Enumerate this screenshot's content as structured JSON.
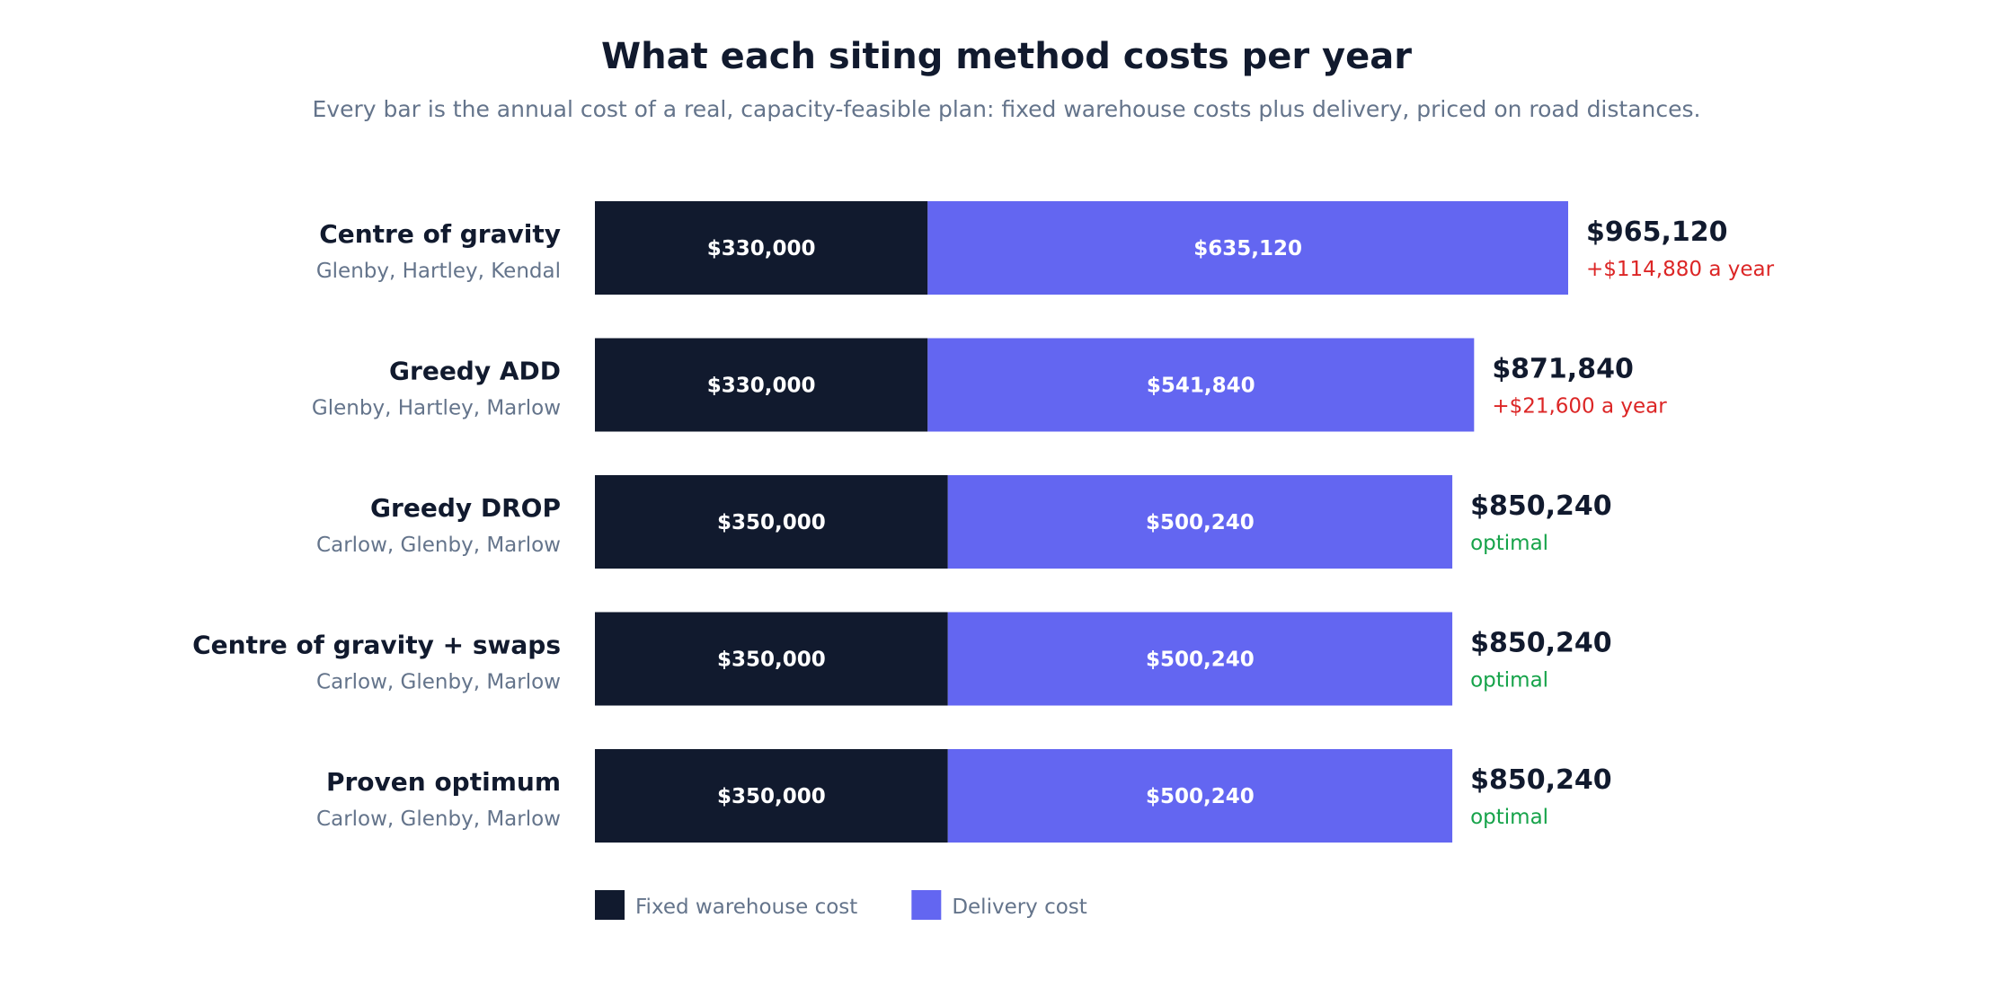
{
  "title": "What each siting method costs per year",
  "subtitle": "Every bar is the annual cost of a real, capacity-feasible plan: fixed warehouse costs plus delivery, priced on road distances.",
  "colors": {
    "fixed": "#111a2e",
    "delivery": "#6366f1",
    "worse": "#dc2626",
    "optimal": "#16a34a"
  },
  "chart_data": {
    "type": "bar",
    "orientation": "horizontal",
    "stacked": true,
    "categories": [
      "Centre of gravity",
      "Greedy ADD",
      "Greedy DROP",
      "Centre of gravity + swaps",
      "Proven optimum"
    ],
    "category_sites": [
      "Glenby, Hartley, Kendal",
      "Glenby, Hartley, Marlow",
      "Carlow, Glenby, Marlow",
      "Carlow, Glenby, Marlow",
      "Carlow, Glenby, Marlow"
    ],
    "series": [
      {
        "name": "Fixed warehouse cost",
        "values": [
          330000,
          330000,
          350000,
          350000,
          350000
        ],
        "labels": [
          "$330,000",
          "$330,000",
          "$350,000",
          "$350,000",
          "$350,000"
        ]
      },
      {
        "name": "Delivery cost",
        "values": [
          635120,
          541840,
          500240,
          500240,
          500240
        ],
        "labels": [
          "$635,120",
          "$541,840",
          "$500,240",
          "$500,240",
          "$500,240"
        ]
      }
    ],
    "totals": [
      "$965,120",
      "$871,840",
      "$850,240",
      "$850,240",
      "$850,240"
    ],
    "notes": [
      "+$114,880 a year",
      "+$21,600 a year",
      "optimal",
      "optimal",
      "optimal"
    ],
    "note_status": [
      "worse",
      "worse",
      "optimal",
      "optimal",
      "optimal"
    ],
    "xlim": [
      0,
      965120
    ],
    "legend_position": "bottom-left"
  }
}
